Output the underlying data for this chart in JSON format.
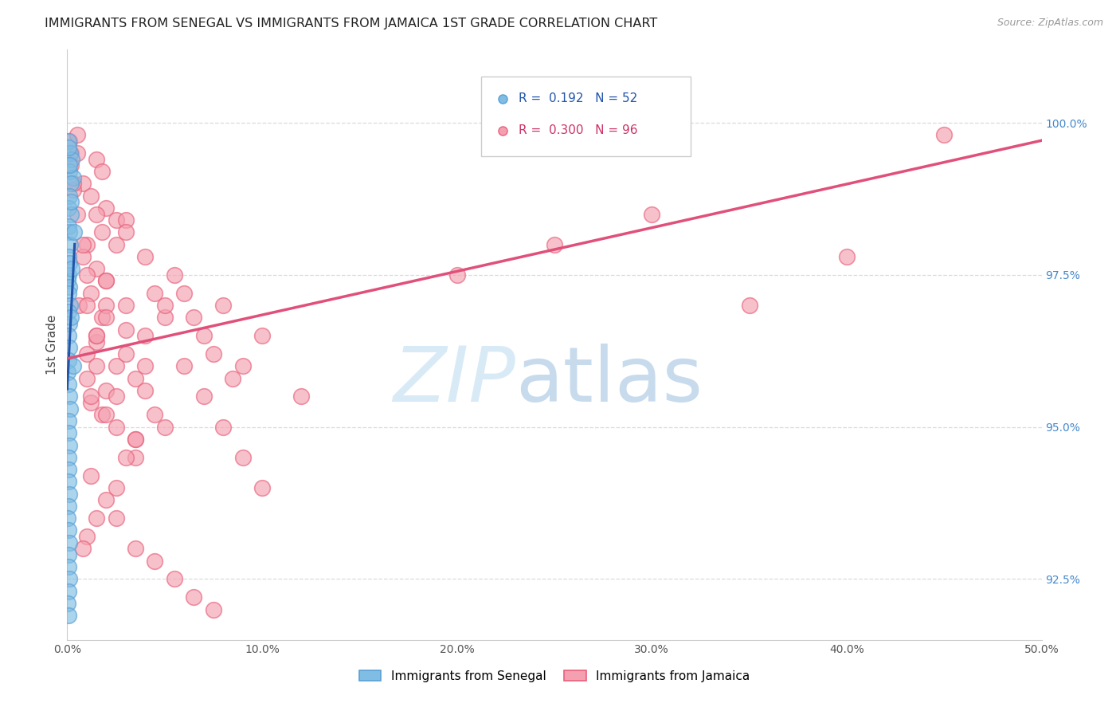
{
  "title": "IMMIGRANTS FROM SENEGAL VS IMMIGRANTS FROM JAMAICA 1ST GRADE CORRELATION CHART",
  "source": "Source: ZipAtlas.com",
  "ylabel": "1st Grade",
  "xlim": [
    0.0,
    50.0
  ],
  "ylim": [
    91.5,
    101.2
  ],
  "y_ticks_right": [
    92.5,
    95.0,
    97.5,
    100.0
  ],
  "y_tick_labels_right": [
    "92.5%",
    "95.0%",
    "97.5%",
    "100.0%"
  ],
  "x_ticks": [
    0,
    10,
    20,
    30,
    40,
    50
  ],
  "x_tick_labels": [
    "0.0%",
    "10.0%",
    "20.0%",
    "30.0%",
    "40.0%",
    "50.0%"
  ],
  "senegal_color": "#7fbde4",
  "jamaica_color": "#f4a0b0",
  "senegal_edge_color": "#5a9fd4",
  "jamaica_edge_color": "#e8607a",
  "senegal_line_color": "#2255aa",
  "jamaica_line_color": "#e0507a",
  "senegal_label": "Immigrants from Senegal",
  "jamaica_label": "Immigrants from Jamaica",
  "watermark_zip_color": "#c8dff0",
  "watermark_atlas_color": "#b0cce8",
  "background_color": "#ffffff",
  "grid_color": "#d8d8d8",
  "senegal_R": 0.192,
  "senegal_N": 52,
  "jamaica_R": 0.3,
  "jamaica_N": 96,
  "senegal_points": [
    [
      0.08,
      99.7
    ],
    [
      0.15,
      99.5
    ],
    [
      0.22,
      99.4
    ],
    [
      0.1,
      99.2
    ],
    [
      0.05,
      99.6
    ],
    [
      0.3,
      99.1
    ],
    [
      0.18,
      99.0
    ],
    [
      0.12,
      98.8
    ],
    [
      0.08,
      98.6
    ],
    [
      0.2,
      98.5
    ],
    [
      0.05,
      98.3
    ],
    [
      0.1,
      98.2
    ],
    [
      0.15,
      98.0
    ],
    [
      0.08,
      97.8
    ],
    [
      0.12,
      97.7
    ],
    [
      0.06,
      97.5
    ],
    [
      0.04,
      97.4
    ],
    [
      0.1,
      97.3
    ],
    [
      0.08,
      97.2
    ],
    [
      0.15,
      97.0
    ],
    [
      0.05,
      96.9
    ],
    [
      0.1,
      96.7
    ],
    [
      0.08,
      96.5
    ],
    [
      0.12,
      96.3
    ],
    [
      0.06,
      96.1
    ],
    [
      0.04,
      95.9
    ],
    [
      0.08,
      95.7
    ],
    [
      0.1,
      95.5
    ],
    [
      0.15,
      95.3
    ],
    [
      0.08,
      95.1
    ],
    [
      0.05,
      94.9
    ],
    [
      0.1,
      94.7
    ],
    [
      0.07,
      94.5
    ],
    [
      0.05,
      94.3
    ],
    [
      0.08,
      94.1
    ],
    [
      0.1,
      93.9
    ],
    [
      0.06,
      93.7
    ],
    [
      0.04,
      93.5
    ],
    [
      0.08,
      93.3
    ],
    [
      0.1,
      93.1
    ],
    [
      0.05,
      92.9
    ],
    [
      0.08,
      92.7
    ],
    [
      0.12,
      92.5
    ],
    [
      0.06,
      92.3
    ],
    [
      0.04,
      92.1
    ],
    [
      0.08,
      91.9
    ],
    [
      0.1,
      99.3
    ],
    [
      0.2,
      98.7
    ],
    [
      0.25,
      97.6
    ],
    [
      0.18,
      96.8
    ],
    [
      0.3,
      96.0
    ],
    [
      0.35,
      98.2
    ]
  ],
  "jamaica_points": [
    [
      0.1,
      99.7
    ],
    [
      0.2,
      99.5
    ],
    [
      1.5,
      99.4
    ],
    [
      1.8,
      99.2
    ],
    [
      0.8,
      99.0
    ],
    [
      1.2,
      98.8
    ],
    [
      0.5,
      99.8
    ],
    [
      2.0,
      98.6
    ],
    [
      2.5,
      98.4
    ],
    [
      1.8,
      98.2
    ],
    [
      1.0,
      98.0
    ],
    [
      0.8,
      97.8
    ],
    [
      1.5,
      97.6
    ],
    [
      2.0,
      97.4
    ],
    [
      1.2,
      97.2
    ],
    [
      0.6,
      97.0
    ],
    [
      1.8,
      96.8
    ],
    [
      3.0,
      96.6
    ],
    [
      1.5,
      96.4
    ],
    [
      1.0,
      96.2
    ],
    [
      2.5,
      96.0
    ],
    [
      3.5,
      95.8
    ],
    [
      2.0,
      95.6
    ],
    [
      1.2,
      95.4
    ],
    [
      1.8,
      95.2
    ],
    [
      3.0,
      98.4
    ],
    [
      4.0,
      97.8
    ],
    [
      2.5,
      98.0
    ],
    [
      2.0,
      97.0
    ],
    [
      1.5,
      96.5
    ],
    [
      1.0,
      97.5
    ],
    [
      2.5,
      95.0
    ],
    [
      3.5,
      94.8
    ],
    [
      4.5,
      97.2
    ],
    [
      5.0,
      96.8
    ],
    [
      3.0,
      98.2
    ],
    [
      2.0,
      97.4
    ],
    [
      1.5,
      96.0
    ],
    [
      1.0,
      95.8
    ],
    [
      2.0,
      95.2
    ],
    [
      3.0,
      97.0
    ],
    [
      4.0,
      96.5
    ],
    [
      3.5,
      94.5
    ],
    [
      2.5,
      94.0
    ],
    [
      2.0,
      93.8
    ],
    [
      1.5,
      93.5
    ],
    [
      1.0,
      93.2
    ],
    [
      0.8,
      93.0
    ],
    [
      1.2,
      94.2
    ],
    [
      0.5,
      99.5
    ],
    [
      0.3,
      98.9
    ],
    [
      1.5,
      98.5
    ],
    [
      3.0,
      96.2
    ],
    [
      4.0,
      95.6
    ],
    [
      5.0,
      97.0
    ],
    [
      6.0,
      96.0
    ],
    [
      7.0,
      95.5
    ],
    [
      8.0,
      95.0
    ],
    [
      9.0,
      94.5
    ],
    [
      10.0,
      94.0
    ],
    [
      5.5,
      97.5
    ],
    [
      6.5,
      96.8
    ],
    [
      7.5,
      96.2
    ],
    [
      8.5,
      95.8
    ],
    [
      3.5,
      93.0
    ],
    [
      4.5,
      92.8
    ],
    [
      5.5,
      92.5
    ],
    [
      6.5,
      92.2
    ],
    [
      7.5,
      92.0
    ],
    [
      2.5,
      93.5
    ],
    [
      3.5,
      94.8
    ],
    [
      4.5,
      95.2
    ],
    [
      1.2,
      95.5
    ],
    [
      2.0,
      96.8
    ],
    [
      0.8,
      98.0
    ],
    [
      0.5,
      98.5
    ],
    [
      0.3,
      99.0
    ],
    [
      0.2,
      99.3
    ],
    [
      1.0,
      97.0
    ],
    [
      1.5,
      96.5
    ],
    [
      2.5,
      95.5
    ],
    [
      3.0,
      94.5
    ],
    [
      4.0,
      96.0
    ],
    [
      5.0,
      95.0
    ],
    [
      6.0,
      97.2
    ],
    [
      7.0,
      96.5
    ],
    [
      8.0,
      97.0
    ],
    [
      9.0,
      96.0
    ],
    [
      20.0,
      97.5
    ],
    [
      25.0,
      98.0
    ],
    [
      30.0,
      98.5
    ],
    [
      35.0,
      97.0
    ],
    [
      40.0,
      97.8
    ],
    [
      45.0,
      99.8
    ],
    [
      10.0,
      96.5
    ],
    [
      12.0,
      95.5
    ]
  ]
}
